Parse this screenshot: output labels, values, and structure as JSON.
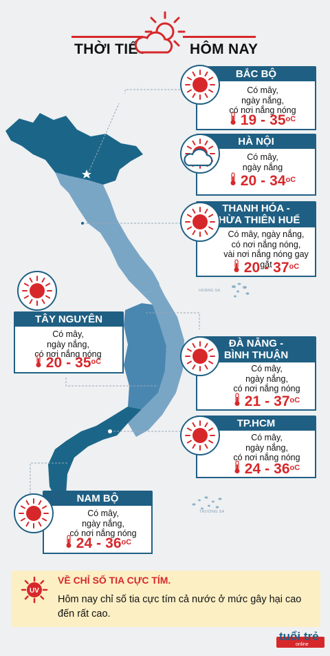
{
  "header": {
    "title_left": "THỜI TIẾT",
    "title_right": "HÔM NAY"
  },
  "regions": [
    {
      "name": "BẮC BỘ",
      "desc": [
        "Có mây,",
        "ngày nắng,",
        "có nơi nắng nóng"
      ],
      "low": "19",
      "high": "35",
      "unit": "oC",
      "icon": "sun-icon"
    },
    {
      "name": "HÀ NỘI",
      "desc": [
        "Có mây,",
        "ngày nắng"
      ],
      "low": "20",
      "high": "34",
      "unit": "oC",
      "icon": "sun-cloud-icon"
    },
    {
      "name": "THANH HÓA - THỪA THIÊN HUẾ",
      "name_lines": [
        "THANH HÓA -",
        "THỪA THIÊN HUẾ"
      ],
      "desc": [
        "Có mây, ngày nắng,",
        "có nơi nắng nóng,",
        "vài nơi nắng nóng gay gắt"
      ],
      "low": "20",
      "high": "37",
      "unit": "oC",
      "icon": "sun-icon"
    },
    {
      "name": "TÂY NGUYÊN",
      "desc": [
        "Có mây,",
        "ngày nắng,",
        "có nơi nắng nóng"
      ],
      "low": "20",
      "high": "35",
      "unit": "oC",
      "icon": "sun-icon"
    },
    {
      "name": "ĐÀ NẴNG - BÌNH THUẬN",
      "name_lines": [
        "ĐÀ NẴNG -",
        "BÌNH THUẬN"
      ],
      "desc": [
        "Có mây,",
        "ngày nắng,",
        "có nơi nắng nóng"
      ],
      "low": "21",
      "high": "37",
      "unit": "oC",
      "icon": "sun-icon"
    },
    {
      "name": "TP.HCM",
      "desc": [
        "Có mây,",
        "ngày nắng,",
        "có nơi nắng nóng"
      ],
      "low": "24",
      "high": "36",
      "unit": "oC",
      "icon": "sun-icon"
    },
    {
      "name": "NAM BỘ",
      "desc": [
        "Có mây,",
        "ngày nắng,",
        "có nơi nắng nóng"
      ],
      "low": "24",
      "high": "36",
      "unit": "oC",
      "icon": "sun-icon"
    }
  ],
  "map_labels": {
    "hoang_sa": "HOÀNG SA",
    "truong_sa": "TRƯỜNG SA"
  },
  "uv": {
    "badge": "UV",
    "title": "VỀ CHỈ SỐ TIA CỰC TÍM.",
    "text": "Hôm nay chỉ số tia cực tím cả nước ở mức gây hại cao đến rất cao."
  },
  "brand": {
    "logo_text": "tuổi trẻ",
    "logo_sub": "online"
  },
  "colors": {
    "accent_red": "#d6282b",
    "navy": "#1f5f83",
    "map_dark": "#1b6688",
    "map_light": "#7aa6c6",
    "uv_bg": "#fcefc4"
  }
}
